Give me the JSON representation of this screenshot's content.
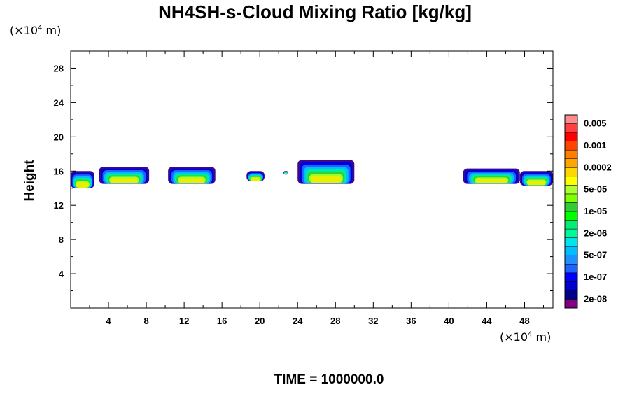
{
  "chart_data": {
    "type": "heatmap",
    "title": "NH4SH-s-Cloud Mixing Ratio [kg/kg]",
    "ylabel": "Height",
    "xlabel": "",
    "x_unit": "(×10",
    "x_unit_exp": "4",
    "x_unit_tail": " m)",
    "y_unit": "(×10",
    "y_unit_exp": "4",
    "y_unit_tail": " m)",
    "xlim": [
      0,
      51
    ],
    "ylim": [
      0,
      30
    ],
    "x_ticks": [
      4,
      8,
      12,
      16,
      20,
      24,
      28,
      32,
      36,
      40,
      44,
      48
    ],
    "y_ticks": [
      4,
      8,
      12,
      16,
      20,
      24,
      28
    ],
    "time_label": "TIME = 1000000.0",
    "colorbar": {
      "colors": [
        "#800080",
        "#00008b",
        "#0000cd",
        "#0000ff",
        "#1e64ff",
        "#1e90ff",
        "#00bfff",
        "#00e5ee",
        "#00fa9a",
        "#00ee76",
        "#00ff00",
        "#32cd32",
        "#7fff00",
        "#adff2f",
        "#ffff00",
        "#ffd700",
        "#ffa500",
        "#ff7f00",
        "#ff4500",
        "#ff0000",
        "#ff4040",
        "#ff8c8c"
      ],
      "labels": [
        "2e-08",
        "1e-07",
        "5e-07",
        "2e-06",
        "1e-05",
        "5e-05",
        "0.0002",
        "0.001",
        "0.005"
      ]
    },
    "cloud_patches": [
      {
        "x0": 0.0,
        "x1": 2.5,
        "ybot": 14.0,
        "ytop": 16.0
      },
      {
        "x0": 3.0,
        "x1": 8.3,
        "ybot": 14.5,
        "ytop": 16.5
      },
      {
        "x0": 10.3,
        "x1": 15.3,
        "ybot": 14.5,
        "ytop": 16.5
      },
      {
        "x0": 18.6,
        "x1": 20.5,
        "ybot": 14.8,
        "ytop": 16.0
      },
      {
        "x0": 22.5,
        "x1": 23.0,
        "ybot": 15.6,
        "ytop": 16.0
      },
      {
        "x0": 24.0,
        "x1": 30.0,
        "ybot": 14.5,
        "ytop": 17.3
      },
      {
        "x0": 41.5,
        "x1": 47.5,
        "ybot": 14.5,
        "ytop": 16.3
      },
      {
        "x0": 47.5,
        "x1": 51.0,
        "ybot": 14.3,
        "ytop": 16.0
      }
    ]
  }
}
